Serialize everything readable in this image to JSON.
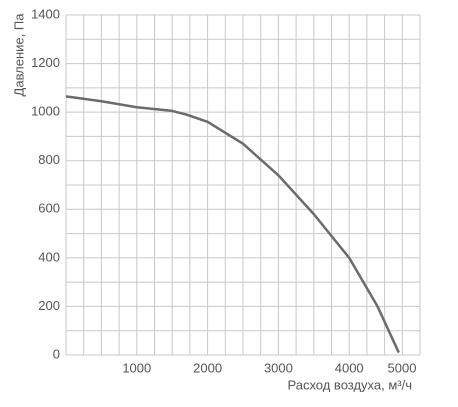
{
  "chart_data": {
    "type": "line",
    "xlabel": "Расход воздуха, м³/ч",
    "ylabel": "Давление, Па",
    "x": [
      0,
      500,
      1000,
      1500,
      1700,
      2000,
      2500,
      3000,
      3500,
      4000,
      4400,
      4700
    ],
    "series": [
      {
        "color": "#6b6b6b",
        "values": [
          1065,
          1045,
          1020,
          1005,
          990,
          960,
          870,
          740,
          580,
          400,
          200,
          10
        ]
      }
    ],
    "xlim": [
      0,
      5000
    ],
    "xticks": [
      1000,
      2000,
      3000,
      4000,
      5000
    ],
    "ylim": [
      0,
      1400
    ],
    "yticks": [
      0,
      200,
      400,
      600,
      800,
      1000,
      1200,
      1400
    ],
    "grid": true
  }
}
